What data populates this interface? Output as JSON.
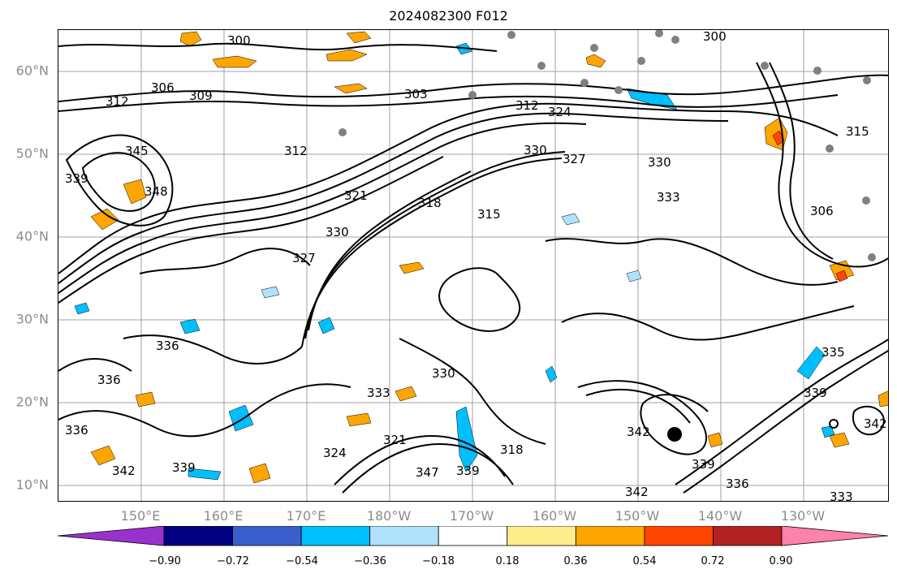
{
  "title": "2024082300 F012",
  "map": {
    "lat_labels": [
      "60°N",
      "50°N",
      "40°N",
      "30°N",
      "20°N",
      "10°N"
    ],
    "lon_labels": [
      "150°E",
      "160°E",
      "170°E",
      "180°W",
      "170°W",
      "160°W",
      "150°W",
      "140°W",
      "130°W"
    ],
    "contour_labels": [
      {
        "text": "300"
      },
      {
        "text": "300"
      },
      {
        "text": "306"
      },
      {
        "text": "309"
      },
      {
        "text": "312"
      },
      {
        "text": "303"
      },
      {
        "text": "312"
      },
      {
        "text": "324"
      },
      {
        "text": "312"
      },
      {
        "text": "345"
      },
      {
        "text": "348"
      },
      {
        "text": "330"
      },
      {
        "text": "327"
      },
      {
        "text": "330"
      },
      {
        "text": "333"
      },
      {
        "text": "315"
      },
      {
        "text": "318"
      },
      {
        "text": "330"
      },
      {
        "text": "327"
      },
      {
        "text": "321"
      },
      {
        "text": "306"
      },
      {
        "text": "315"
      },
      {
        "text": "336"
      },
      {
        "text": "336"
      },
      {
        "text": "333"
      },
      {
        "text": "330"
      },
      {
        "text": "342"
      },
      {
        "text": "339"
      },
      {
        "text": "342"
      },
      {
        "text": "339"
      },
      {
        "text": "336"
      },
      {
        "text": "342"
      },
      {
        "text": "333"
      },
      {
        "text": "335"
      },
      {
        "text": "339"
      },
      {
        "text": "342"
      },
      {
        "text": "324"
      },
      {
        "text": "321"
      },
      {
        "text": "347"
      },
      {
        "text": "339"
      },
      {
        "text": "318"
      },
      {
        "text": "339"
      },
      {
        "text": "336"
      }
    ],
    "colors": {
      "contour": "#000000",
      "grid": "#a0a0a0",
      "labels": "#8c8c8c"
    }
  },
  "colorbar": {
    "tick_labels": [
      "−0.90",
      "−0.72",
      "−0.54",
      "−0.36",
      "−0.18",
      "0.18",
      "0.36",
      "0.54",
      "0.72",
      "0.90"
    ],
    "colors": [
      "#9932cc",
      "#000080",
      "#3a5fcd",
      "#00bfff",
      "#b0e2ff",
      "#ffffff",
      "#ffec8b",
      "#ffa500",
      "#ff4500",
      "#b22222",
      "#ff82ab"
    ]
  }
}
